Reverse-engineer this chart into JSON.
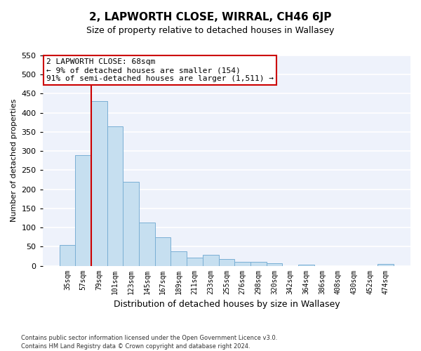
{
  "title": "2, LAPWORTH CLOSE, WIRRAL, CH46 6JP",
  "subtitle": "Size of property relative to detached houses in Wallasey",
  "xlabel": "Distribution of detached houses by size in Wallasey",
  "ylabel": "Number of detached properties",
  "footnote1": "Contains HM Land Registry data © Crown copyright and database right 2024.",
  "footnote2": "Contains public sector information licensed under the Open Government Licence v3.0.",
  "bar_labels": [
    "35sqm",
    "57sqm",
    "79sqm",
    "101sqm",
    "123sqm",
    "145sqm",
    "167sqm",
    "189sqm",
    "211sqm",
    "233sqm",
    "255sqm",
    "276sqm",
    "298sqm",
    "320sqm",
    "342sqm",
    "364sqm",
    "386sqm",
    "408sqm",
    "430sqm",
    "452sqm",
    "474sqm"
  ],
  "bar_values": [
    55,
    290,
    430,
    365,
    220,
    113,
    75,
    38,
    22,
    29,
    18,
    10,
    10,
    7,
    0,
    3,
    0,
    0,
    0,
    0,
    5
  ],
  "bar_color": "#c6dff0",
  "bar_edge_color": "#7aafd4",
  "annotation_line1": "2 LAPWORTH CLOSE: 68sqm",
  "annotation_line2": "← 9% of detached houses are smaller (154)",
  "annotation_line3": "91% of semi-detached houses are larger (1,511) →",
  "annotation_box_edge_color": "#cc0000",
  "vline_color": "#cc0000",
  "vline_x": 1.5,
  "ylim": [
    0,
    550
  ],
  "yticks": [
    0,
    50,
    100,
    150,
    200,
    250,
    300,
    350,
    400,
    450,
    500,
    550
  ],
  "background_color": "#ffffff",
  "plot_bg_color": "#eef2fb",
  "grid_color": "#ffffff",
  "title_fontsize": 11,
  "subtitle_fontsize": 9,
  "ylabel_fontsize": 8,
  "xlabel_fontsize": 9,
  "tick_fontsize": 8,
  "xtick_fontsize": 7,
  "footnote_fontsize": 6,
  "annot_fontsize": 8
}
